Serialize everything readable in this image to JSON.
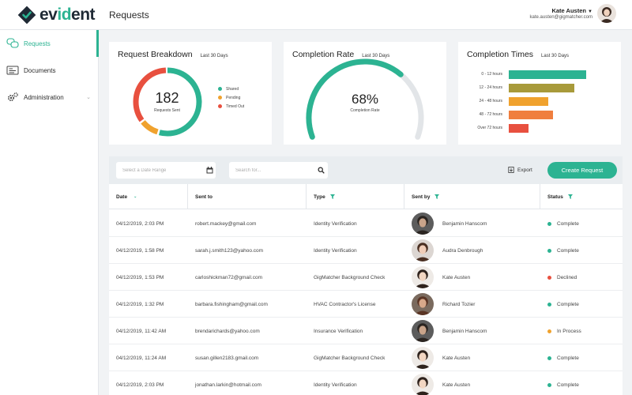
{
  "app": {
    "logo_prefix": "ev",
    "logo_accent": "id",
    "logo_suffix": "ent",
    "page_title": "Requests"
  },
  "user": {
    "name": "Kate Austen",
    "email": "kate.austen@gigmatcher.com"
  },
  "sidebar": {
    "items": [
      {
        "label": "Requests",
        "icon": "requests-icon",
        "active": true
      },
      {
        "label": "Documents",
        "icon": "documents-icon",
        "active": false
      },
      {
        "label": "Administration",
        "icon": "gear-icon",
        "active": false
      }
    ]
  },
  "cards": {
    "breakdown": {
      "title": "Request Breakdown",
      "period": "Last 30 Days",
      "total": "182",
      "total_label": "Requests Sent",
      "legend": [
        {
          "label": "Shared",
          "color": "#2cb392"
        },
        {
          "label": "Pending",
          "color": "#f0a22e"
        },
        {
          "label": "Timed Out",
          "color": "#e8503f"
        }
      ]
    },
    "completion_rate": {
      "title": "Completion Rate",
      "period": "Last 30 Days",
      "value": "68%",
      "label": "Completion Rate",
      "fraction": 0.68
    },
    "completion_times": {
      "title": "Completion Times",
      "period": "Last 30 Days"
    }
  },
  "chart_data": [
    {
      "type": "pie",
      "categories": [
        "Shared",
        "Pending",
        "Timed Out"
      ],
      "values": [
        0.55,
        0.1,
        0.35
      ],
      "colors": [
        "#2cb392",
        "#f0a22e",
        "#e8503f"
      ]
    },
    {
      "type": "bar",
      "orientation": "horizontal",
      "categories": [
        "0 - 12 hours",
        "12 - 24 hours",
        "24 - 48 hours",
        "48 - 72 hours",
        "Over 72 hours"
      ],
      "values": [
        98,
        83,
        50,
        56,
        25
      ],
      "colors": [
        "#2cb392",
        "#a89a3a",
        "#f0a22e",
        "#f07e3e",
        "#e8503f"
      ],
      "xlim": [
        0,
        100
      ]
    }
  ],
  "toolbar": {
    "date_placeholder": "Select a Date Range",
    "search_placeholder": "Search for...",
    "export_label": "Export",
    "create_label": "Create Request"
  },
  "table": {
    "headers": [
      "Date",
      "Sent to",
      "Type",
      "Sent by",
      "Status"
    ],
    "status_colors": {
      "Complete": "#2cb392",
      "Declined": "#e8503f",
      "In Process": "#f0a22e"
    },
    "rows": [
      {
        "date": "04/12/2019, 2:03 PM",
        "sent_to": "robert.mackey@gmail.com",
        "type": "Identity Verification",
        "sent_by": "Benjamin Hanscom",
        "status": "Complete"
      },
      {
        "date": "04/12/2019, 1:58 PM",
        "sent_to": "sarah.j.smith123@yahoo.com",
        "type": "Identity Verification",
        "sent_by": "Audra Denbrough",
        "status": "Complete"
      },
      {
        "date": "04/12/2019, 1:53 PM",
        "sent_to": "carloshickman72@gmail.com",
        "type": "GigMatcher Background Check",
        "sent_by": "Kate Austen",
        "status": "Declined"
      },
      {
        "date": "04/12/2019, 1:32 PM",
        "sent_to": "barbara.fishingham@gmail.com",
        "type": "HVAC Contractor's License",
        "sent_by": "Richard Tozier",
        "status": "Complete"
      },
      {
        "date": "04/12/2019, 11:42 AM",
        "sent_to": "brendarichards@yahoo.com",
        "type": "Insurance Verification",
        "sent_by": "Benjamin Hanscom",
        "status": "In Process"
      },
      {
        "date": "04/12/2019, 11:24 AM",
        "sent_to": "susan.gillen2183.gmail.com",
        "type": "GigMatcher Background Check",
        "sent_by": "Kate Austen",
        "status": "Complete"
      },
      {
        "date": "04/12/2019, 2:03 PM",
        "sent_to": "jonathan.larkin@hotmail.com",
        "type": "Identity Verification",
        "sent_by": "Kate Austen",
        "status": "Complete"
      }
    ]
  }
}
